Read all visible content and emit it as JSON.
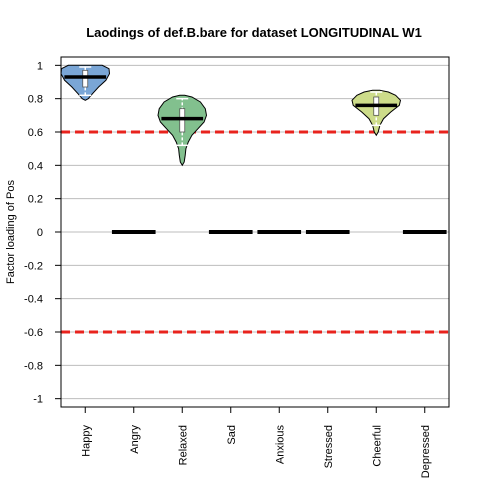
{
  "chart_data": {
    "type": "violin",
    "title": "Laodings of def.B.bare for dataset LONGITUDINAL W1",
    "xlabel": "",
    "ylabel": "Factor loading of Pos",
    "ylim": [
      -1.05,
      1.05
    ],
    "yticks": [
      1,
      0.8,
      0.6,
      0.4,
      0.2,
      0,
      -0.2,
      -0.4,
      -0.6,
      -0.8,
      -1
    ],
    "ytick_labels": [
      "1",
      "0.8",
      "0.6",
      "0.4",
      "0.2",
      "0",
      "-0.2",
      "-0.4",
      "-0.6",
      "-0.8",
      "-1"
    ],
    "categories": [
      "Happy",
      "Angry",
      "Relaxed",
      "Sad",
      "Anxious",
      "Stressed",
      "Cheerful",
      "Depressed"
    ],
    "grid": "horizontal",
    "reference_lines": [
      {
        "value": 0.6,
        "color": "#e8231d",
        "style": "dashed"
      },
      {
        "value": -0.6,
        "color": "#e8231d",
        "style": "dashed"
      }
    ],
    "series": [
      {
        "category": "Happy",
        "median": 0.93,
        "min": 0.79,
        "max": 1.0,
        "color": "#7aa6d6",
        "profile": [
          [
            0.79,
            0.0
          ],
          [
            0.8,
            0.12
          ],
          [
            0.83,
            0.3
          ],
          [
            0.87,
            0.55
          ],
          [
            0.91,
            0.85
          ],
          [
            0.95,
            1.0
          ],
          [
            0.98,
            0.98
          ],
          [
            1.0,
            0.7
          ]
        ],
        "iqr": [
          0.87,
          0.97
        ],
        "whiskers": [
          0.82,
          0.99
        ]
      },
      {
        "category": "Angry",
        "median": 0.0,
        "color": "#000000",
        "constant": true
      },
      {
        "category": "Relaxed",
        "median": 0.68,
        "min": 0.4,
        "max": 0.82,
        "color": "#82c08e",
        "profile": [
          [
            0.4,
            0.0
          ],
          [
            0.42,
            0.08
          ],
          [
            0.46,
            0.12
          ],
          [
            0.5,
            0.15
          ],
          [
            0.54,
            0.25
          ],
          [
            0.58,
            0.4
          ],
          [
            0.62,
            0.65
          ],
          [
            0.66,
            0.9
          ],
          [
            0.7,
            1.0
          ],
          [
            0.74,
            0.95
          ],
          [
            0.78,
            0.75
          ],
          [
            0.81,
            0.4
          ],
          [
            0.82,
            0.1
          ]
        ],
        "iqr": [
          0.6,
          0.74
        ],
        "whiskers": [
          0.52,
          0.8
        ]
      },
      {
        "category": "Sad",
        "median": 0.0,
        "color": "#000000",
        "constant": true
      },
      {
        "category": "Anxious",
        "median": 0.0,
        "color": "#000000",
        "constant": true
      },
      {
        "category": "Stressed",
        "median": 0.0,
        "color": "#000000",
        "constant": true
      },
      {
        "category": "Cheerful",
        "median": 0.76,
        "min": 0.58,
        "max": 0.85,
        "color": "#cddc8a",
        "profile": [
          [
            0.58,
            0.0
          ],
          [
            0.6,
            0.08
          ],
          [
            0.64,
            0.15
          ],
          [
            0.68,
            0.3
          ],
          [
            0.72,
            0.6
          ],
          [
            0.76,
            0.95
          ],
          [
            0.79,
            1.0
          ],
          [
            0.82,
            0.8
          ],
          [
            0.84,
            0.5
          ],
          [
            0.85,
            0.15
          ]
        ],
        "iqr": [
          0.7,
          0.81
        ],
        "whiskers": [
          0.64,
          0.84
        ]
      },
      {
        "category": "Depressed",
        "median": 0.0,
        "color": "#000000",
        "constant": true
      }
    ]
  }
}
